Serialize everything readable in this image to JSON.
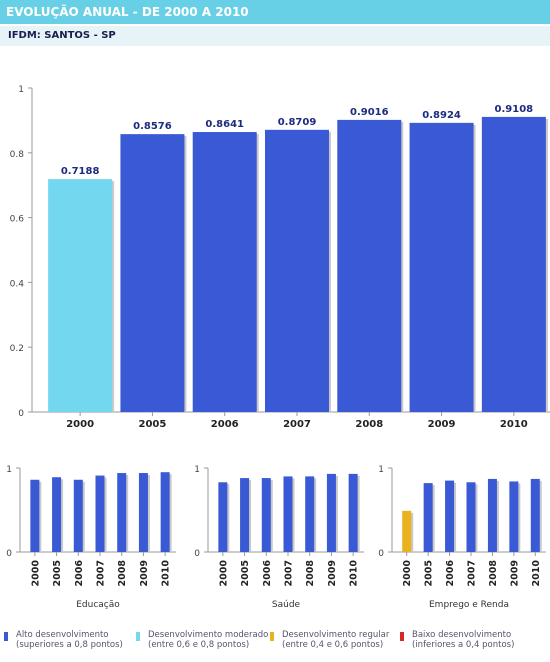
{
  "header": {
    "title": "EVOLUÇÃO ANUAL - DE 2000 A 2010",
    "subtitle": "IFDM: SANTOS - SP"
  },
  "colors": {
    "high": "#3a59d4",
    "moderate": "#74d7f0",
    "regular": "#e8b221",
    "low": "#d42a22",
    "header_bar": "#67d0e6"
  },
  "chart_data": [
    {
      "id": "main",
      "type": "bar",
      "categories": [
        "2000",
        "2005",
        "2006",
        "2007",
        "2008",
        "2009",
        "2010"
      ],
      "values": [
        0.7188,
        0.8576,
        0.8641,
        0.8709,
        0.9016,
        0.8924,
        0.9108
      ],
      "value_labels": [
        "0.7188",
        "0.8576",
        "0.8641",
        "0.8709",
        "0.9016",
        "0.8924",
        "0.9108"
      ],
      "bar_classes": [
        "moderate",
        "high",
        "high",
        "high",
        "high",
        "high",
        "high"
      ],
      "yticks": [
        "0",
        "0.2",
        "0.4",
        "0.6",
        "0.8",
        "1"
      ],
      "ylim": [
        0,
        1
      ],
      "grid": false
    },
    {
      "id": "educacao",
      "type": "bar",
      "xlabel": "Educação",
      "categories": [
        "2000",
        "2005",
        "2006",
        "2007",
        "2008",
        "2009",
        "2010"
      ],
      "values": [
        0.86,
        0.89,
        0.86,
        0.91,
        0.94,
        0.94,
        0.95
      ],
      "bar_classes": [
        "high",
        "high",
        "high",
        "high",
        "high",
        "high",
        "high"
      ],
      "yticks": [
        "0",
        "1"
      ],
      "ylim": [
        0,
        1
      ]
    },
    {
      "id": "saude",
      "type": "bar",
      "xlabel": "Saúde",
      "categories": [
        "2000",
        "2005",
        "2006",
        "2007",
        "2008",
        "2009",
        "2010"
      ],
      "values": [
        0.83,
        0.88,
        0.88,
        0.9,
        0.9,
        0.93,
        0.93
      ],
      "bar_classes": [
        "high",
        "high",
        "high",
        "high",
        "high",
        "high",
        "high"
      ],
      "yticks": [
        "0",
        "1"
      ],
      "ylim": [
        0,
        1
      ]
    },
    {
      "id": "emprego",
      "type": "bar",
      "xlabel": "Emprego e Renda",
      "categories": [
        "2000",
        "2005",
        "2006",
        "2007",
        "2008",
        "2009",
        "2010"
      ],
      "values": [
        0.49,
        0.82,
        0.85,
        0.83,
        0.87,
        0.84,
        0.87
      ],
      "bar_classes": [
        "regular",
        "high",
        "high",
        "high",
        "high",
        "high",
        "high"
      ],
      "yticks": [
        "0",
        "1"
      ],
      "ylim": [
        0,
        1
      ]
    }
  ],
  "legend": [
    {
      "key": "high",
      "line1": "Alto desenvolvimento",
      "line2": "(superiores a 0,8 pontos)"
    },
    {
      "key": "moderate",
      "line1": "Desenvolvimento moderado",
      "line2": "(entre 0,6 e 0,8 pontos)"
    },
    {
      "key": "regular",
      "line1": "Desenvolvimento regular",
      "line2": "(entre 0,4 e 0,6 pontos)"
    },
    {
      "key": "low",
      "line1": "Baixo desenvolvimento",
      "line2": "(inferiores a 0,4 pontos)"
    }
  ]
}
